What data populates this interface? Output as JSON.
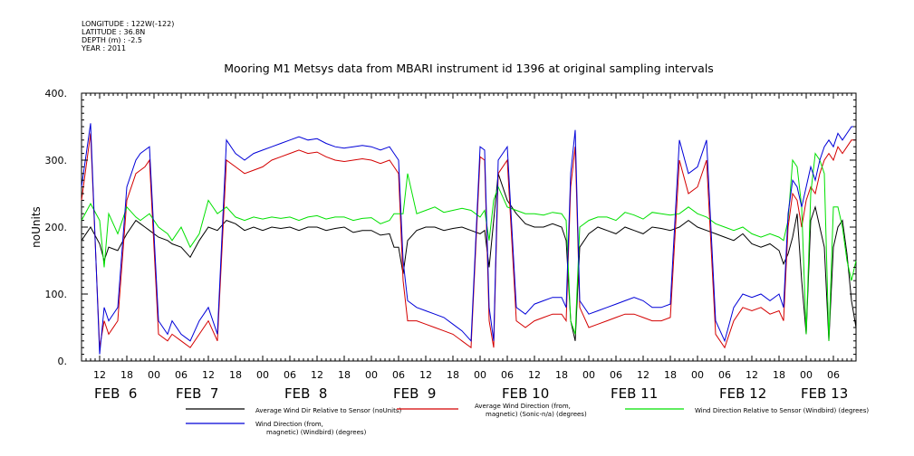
{
  "metadata": {
    "longitude": "LONGITUDE : 122W(-122)",
    "latitude": "LATITUDE : 36.8N",
    "depth": "DEPTH (m) : -2.5",
    "year": "YEAR : 2011"
  },
  "chart_data": {
    "type": "line",
    "title": "Mooring M1 Metsys data from MBARI instrument id 1396 at original sampling intervals",
    "ylabel": "noUnits",
    "ylim": [
      0,
      400
    ],
    "yticks": [
      0,
      100,
      200,
      300,
      400
    ],
    "yticklabels": [
      "0.",
      "100.",
      "200.",
      "300.",
      "400."
    ],
    "xlim_hours": [
      0,
      171
    ],
    "x_start": "2011-02-06 08:00",
    "hour_ticks": [
      {
        "h": 4,
        "label": "12"
      },
      {
        "h": 10,
        "label": "18"
      },
      {
        "h": 16,
        "label": "00"
      },
      {
        "h": 22,
        "label": "06"
      },
      {
        "h": 28,
        "label": "12"
      },
      {
        "h": 34,
        "label": "18"
      },
      {
        "h": 40,
        "label": "00"
      },
      {
        "h": 46,
        "label": "06"
      },
      {
        "h": 52,
        "label": "12"
      },
      {
        "h": 58,
        "label": "18"
      },
      {
        "h": 64,
        "label": "00"
      },
      {
        "h": 70,
        "label": "06"
      },
      {
        "h": 76,
        "label": "12"
      },
      {
        "h": 82,
        "label": "18"
      },
      {
        "h": 88,
        "label": "00"
      },
      {
        "h": 94,
        "label": "06"
      },
      {
        "h": 100,
        "label": "12"
      },
      {
        "h": 106,
        "label": "18"
      },
      {
        "h": 112,
        "label": "00"
      },
      {
        "h": 118,
        "label": "06"
      },
      {
        "h": 124,
        "label": "12"
      },
      {
        "h": 130,
        "label": "18"
      },
      {
        "h": 136,
        "label": "00"
      },
      {
        "h": 142,
        "label": "06"
      },
      {
        "h": 148,
        "label": "12"
      },
      {
        "h": 154,
        "label": "18"
      },
      {
        "h": 160,
        "label": "00"
      },
      {
        "h": 166,
        "label": "06"
      }
    ],
    "day_labels": [
      {
        "h": 4,
        "label": "FEB  6"
      },
      {
        "h": 22,
        "label": "FEB  7"
      },
      {
        "h": 46,
        "label": "FEB  8"
      },
      {
        "h": 70,
        "label": "FEB  9"
      },
      {
        "h": 94,
        "label": "FEB 10"
      },
      {
        "h": 118,
        "label": "FEB 11"
      },
      {
        "h": 142,
        "label": "FEB 12"
      },
      {
        "h": 160,
        "label": "FEB 13"
      }
    ],
    "series": [
      {
        "name": "Average Wind Dir Relative to Sensor (noUnits)",
        "color": "#000000",
        "x": [
          0,
          2,
          4,
          5,
          6,
          8,
          10,
          12,
          13,
          14,
          15,
          17,
          19,
          20,
          22,
          24,
          26,
          28,
          30,
          32,
          34,
          36,
          38,
          40,
          42,
          44,
          46,
          48,
          50,
          52,
          54,
          56,
          58,
          60,
          62,
          64,
          66,
          68,
          69,
          70,
          71,
          72,
          74,
          76,
          78,
          80,
          82,
          84,
          86,
          88,
          89,
          90,
          91,
          92,
          94,
          96,
          98,
          100,
          102,
          104,
          106,
          107,
          108,
          109,
          110,
          112,
          114,
          116,
          118,
          120,
          122,
          124,
          126,
          128,
          130,
          132,
          134,
          136,
          138,
          140,
          142,
          144,
          146,
          148,
          150,
          152,
          154,
          155,
          156,
          157,
          158,
          159,
          160,
          161,
          162,
          163,
          164,
          165,
          166,
          167,
          168,
          169,
          170,
          171
        ],
        "y": [
          180,
          200,
          175,
          150,
          170,
          165,
          190,
          210,
          205,
          200,
          195,
          185,
          180,
          175,
          170,
          155,
          180,
          200,
          195,
          210,
          205,
          195,
          200,
          195,
          200,
          198,
          200,
          195,
          200,
          200,
          195,
          198,
          200,
          192,
          195,
          195,
          188,
          190,
          170,
          170,
          130,
          180,
          195,
          200,
          200,
          195,
          198,
          200,
          195,
          190,
          195,
          140,
          210,
          280,
          240,
          220,
          205,
          200,
          200,
          205,
          200,
          180,
          60,
          30,
          170,
          190,
          200,
          195,
          190,
          200,
          195,
          190,
          200,
          198,
          195,
          200,
          210,
          200,
          195,
          190,
          185,
          180,
          190,
          175,
          170,
          175,
          165,
          145,
          160,
          185,
          220,
          120,
          40,
          210,
          230,
          200,
          170,
          30,
          170,
          200,
          210,
          160,
          90,
          50
        ]
      },
      {
        "name": "Average Wind Direction (from, magnetic) (Sonic-n/a) (degrees)",
        "color": "#d40000",
        "x": [
          0,
          2,
          4,
          5,
          6,
          8,
          10,
          12,
          13,
          14,
          15,
          17,
          19,
          20,
          22,
          24,
          26,
          28,
          30,
          32,
          34,
          36,
          38,
          40,
          42,
          44,
          46,
          48,
          50,
          52,
          54,
          56,
          58,
          60,
          62,
          64,
          66,
          68,
          69,
          70,
          71,
          72,
          74,
          76,
          78,
          80,
          82,
          84,
          86,
          88,
          89,
          90,
          91,
          92,
          94,
          96,
          98,
          100,
          102,
          104,
          106,
          107,
          108,
          109,
          110,
          112,
          114,
          116,
          118,
          120,
          122,
          124,
          126,
          128,
          130,
          132,
          134,
          136,
          138,
          140,
          142,
          144,
          146,
          148,
          150,
          152,
          154,
          155,
          156,
          157,
          158,
          159,
          160,
          161,
          162,
          163,
          164,
          165,
          166,
          167,
          168,
          169,
          170,
          171
        ],
        "y": [
          240,
          340,
          20,
          60,
          40,
          60,
          240,
          280,
          285,
          290,
          300,
          40,
          30,
          40,
          30,
          20,
          40,
          60,
          30,
          300,
          290,
          280,
          285,
          290,
          300,
          305,
          310,
          315,
          310,
          312,
          305,
          300,
          298,
          300,
          302,
          300,
          295,
          300,
          290,
          280,
          120,
          60,
          60,
          55,
          50,
          45,
          40,
          30,
          20,
          305,
          300,
          60,
          20,
          280,
          300,
          60,
          50,
          60,
          65,
          70,
          70,
          60,
          260,
          320,
          80,
          50,
          55,
          60,
          65,
          70,
          70,
          65,
          60,
          60,
          65,
          300,
          250,
          260,
          300,
          40,
          20,
          60,
          80,
          75,
          80,
          70,
          75,
          60,
          200,
          250,
          240,
          200,
          240,
          260,
          250,
          280,
          300,
          310,
          300,
          320,
          310,
          320,
          330,
          330
        ]
      },
      {
        "name": "Wind Direction Relative to Sensor (Windbird) (degrees)",
        "color": "#00e000",
        "x": [
          0,
          2,
          4,
          5,
          6,
          8,
          10,
          12,
          13,
          14,
          15,
          17,
          19,
          20,
          22,
          24,
          26,
          28,
          30,
          32,
          34,
          36,
          38,
          40,
          42,
          44,
          46,
          48,
          50,
          52,
          54,
          56,
          58,
          60,
          62,
          64,
          66,
          68,
          69,
          70,
          71,
          72,
          74,
          76,
          78,
          80,
          82,
          84,
          86,
          88,
          89,
          90,
          91,
          92,
          94,
          96,
          98,
          100,
          102,
          104,
          106,
          107,
          108,
          109,
          110,
          112,
          114,
          116,
          118,
          120,
          122,
          124,
          126,
          128,
          130,
          132,
          134,
          136,
          138,
          140,
          142,
          144,
          146,
          148,
          150,
          152,
          154,
          155,
          156,
          157,
          158,
          159,
          160,
          161,
          162,
          163,
          164,
          165,
          166,
          167,
          168,
          169,
          170,
          171
        ],
        "y": [
          210,
          235,
          210,
          140,
          220,
          190,
          230,
          215,
          210,
          215,
          220,
          200,
          190,
          180,
          200,
          170,
          190,
          240,
          220,
          230,
          215,
          210,
          215,
          212,
          215,
          213,
          215,
          210,
          215,
          217,
          212,
          215,
          215,
          210,
          213,
          214,
          205,
          210,
          220,
          220,
          220,
          280,
          220,
          225,
          230,
          222,
          225,
          228,
          225,
          215,
          225,
          180,
          240,
          260,
          230,
          225,
          220,
          220,
          218,
          222,
          220,
          210,
          60,
          40,
          200,
          210,
          215,
          215,
          210,
          222,
          218,
          212,
          222,
          220,
          218,
          220,
          230,
          220,
          215,
          205,
          200,
          195,
          200,
          190,
          185,
          190,
          185,
          180,
          210,
          300,
          290,
          230,
          40,
          250,
          310,
          300,
          280,
          30,
          230,
          230,
          200,
          150,
          120,
          150
        ]
      },
      {
        "name": "Wind Direction (from, magnetic) (Windbird) (degrees)",
        "color": "#0000d8",
        "x": [
          0,
          2,
          4,
          5,
          6,
          8,
          10,
          12,
          13,
          14,
          15,
          17,
          19,
          20,
          22,
          24,
          26,
          28,
          30,
          32,
          34,
          36,
          38,
          40,
          42,
          44,
          46,
          48,
          50,
          52,
          54,
          56,
          58,
          60,
          62,
          64,
          66,
          68,
          69,
          70,
          71,
          72,
          74,
          76,
          78,
          80,
          82,
          84,
          86,
          88,
          89,
          90,
          91,
          92,
          94,
          96,
          98,
          100,
          102,
          104,
          106,
          107,
          108,
          109,
          110,
          112,
          114,
          116,
          118,
          120,
          122,
          124,
          126,
          128,
          130,
          132,
          134,
          136,
          138,
          140,
          142,
          144,
          146,
          148,
          150,
          152,
          154,
          155,
          156,
          157,
          158,
          159,
          160,
          161,
          162,
          163,
          164,
          165,
          166,
          167,
          168,
          169,
          170,
          171
        ],
        "y": [
          260,
          355,
          10,
          80,
          60,
          80,
          260,
          300,
          310,
          315,
          320,
          60,
          40,
          60,
          40,
          30,
          60,
          80,
          40,
          330,
          310,
          300,
          310,
          315,
          320,
          325,
          330,
          335,
          330,
          332,
          325,
          320,
          318,
          320,
          322,
          320,
          315,
          320,
          310,
          300,
          150,
          90,
          80,
          75,
          70,
          65,
          55,
          45,
          30,
          320,
          315,
          80,
          30,
          300,
          320,
          80,
          70,
          85,
          90,
          95,
          95,
          80,
          280,
          345,
          90,
          70,
          75,
          80,
          85,
          90,
          95,
          90,
          80,
          80,
          85,
          330,
          280,
          290,
          330,
          60,
          30,
          80,
          100,
          95,
          100,
          90,
          100,
          80,
          220,
          270,
          260,
          230,
          260,
          290,
          270,
          300,
          320,
          330,
          320,
          340,
          330,
          340,
          350,
          350
        ]
      }
    ],
    "legend": [
      {
        "name": "Average Wind Dir Relative to Sensor (noUnits)",
        "lines": [
          "Average Wind Dir Relative to Sensor (noUnits)"
        ],
        "color": "#000000"
      },
      {
        "name": "Average Wind Direction (from, magnetic) (Sonic-n/a) (degrees)",
        "lines": [
          "Average Wind Direction (from,",
          "magnetic) (Sonic-n/a) (degrees)"
        ],
        "color": "#d40000"
      },
      {
        "name": "Wind Direction Relative to Sensor (Windbird) (degrees)",
        "lines": [
          "Wind Direction Relative to Sensor (Windbird) (degrees)"
        ],
        "color": "#00e000"
      },
      {
        "name": "Wind Direction (from, magnetic) (Windbird) (degrees)",
        "lines": [
          "Wind Direction (from,",
          "magnetic) (Windbird) (degrees)"
        ],
        "color": "#0000d8"
      }
    ]
  }
}
